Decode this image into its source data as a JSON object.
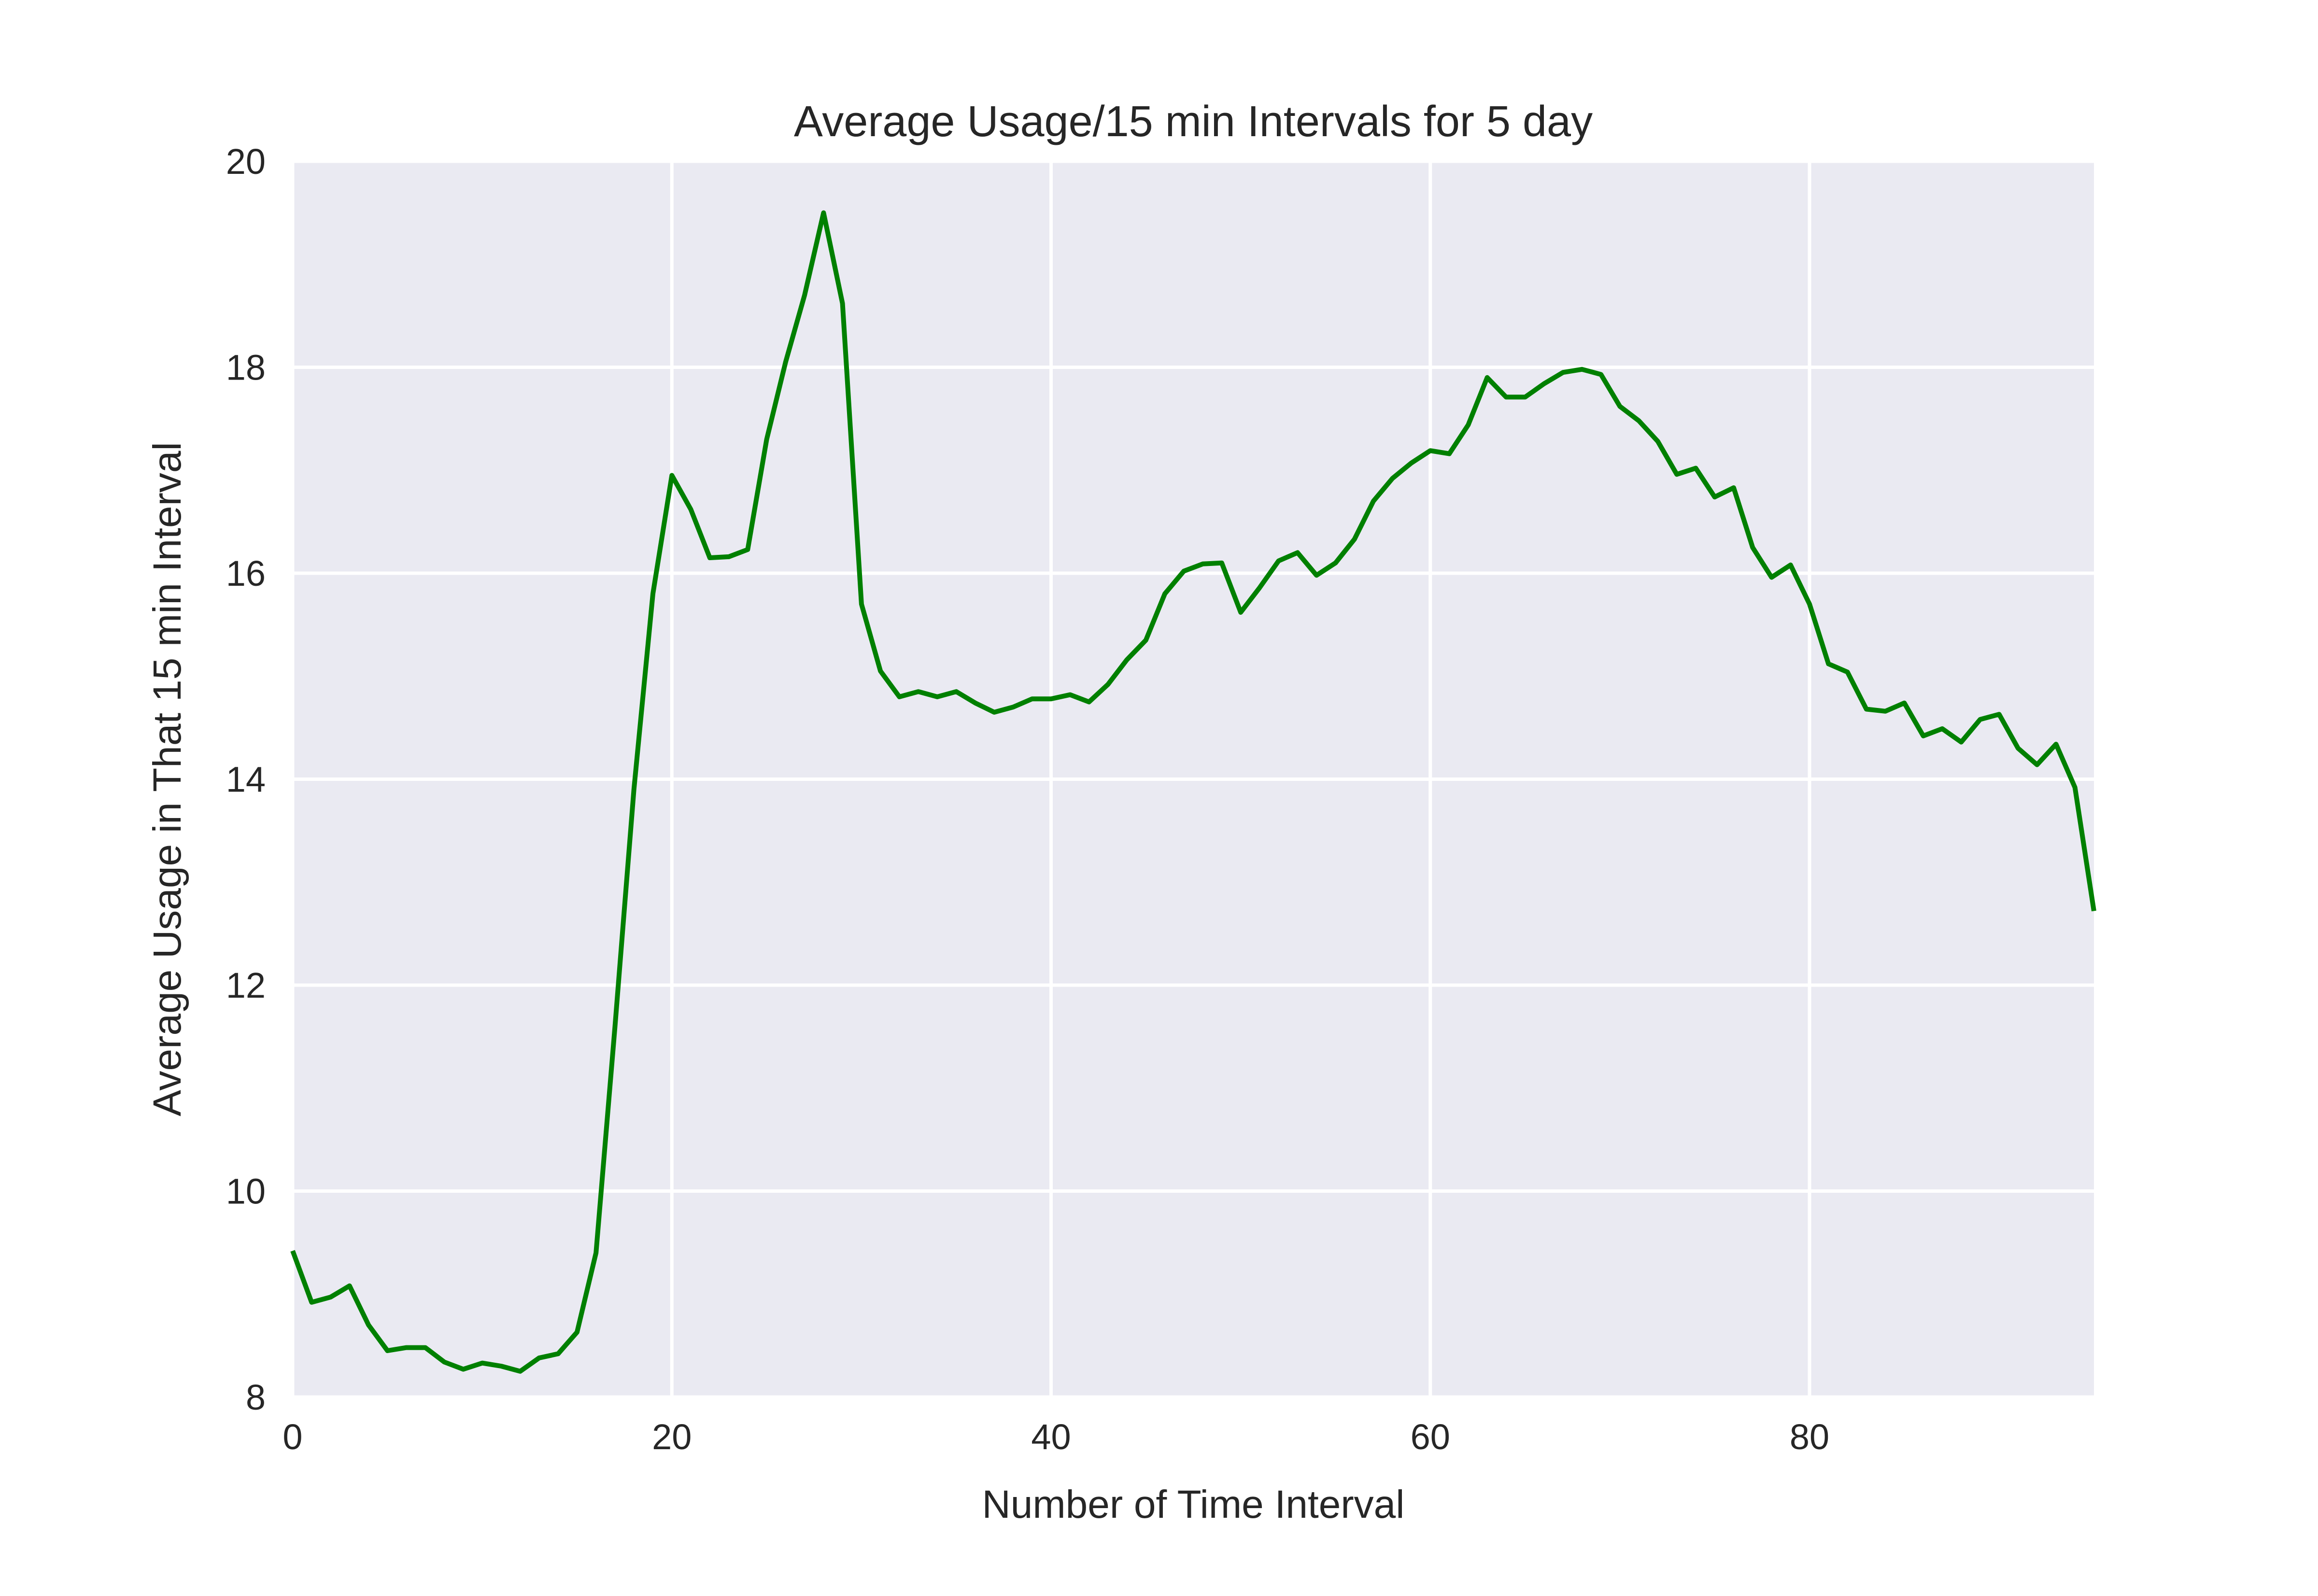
{
  "chart_data": {
    "type": "line",
    "title": "Average Usage/15 min Intervals for 5 day",
    "xlabel": "Number of Time Interval",
    "ylabel": "Average Usage in That 15 min Interval",
    "xlim": [
      0,
      95
    ],
    "ylim": [
      8,
      20
    ],
    "xticks": [
      0,
      20,
      40,
      60,
      80
    ],
    "yticks": [
      8,
      10,
      12,
      14,
      16,
      18,
      20
    ],
    "grid": true,
    "colors": {
      "background": "#eaeaf2",
      "grid": "#ffffff",
      "line": "#008000"
    },
    "series": [
      {
        "x": [
          0,
          1,
          2,
          3,
          4,
          5,
          6,
          7,
          8,
          9,
          10,
          11,
          12,
          13,
          14,
          15,
          16,
          17,
          18,
          19,
          20,
          21,
          22,
          23,
          24,
          25,
          26,
          27,
          28,
          29,
          30,
          31,
          32,
          33,
          34,
          35,
          36,
          37,
          38,
          39,
          40,
          41,
          42,
          43,
          44,
          45,
          46,
          47,
          48,
          49,
          50,
          51,
          52,
          53,
          54,
          55,
          56,
          57,
          58,
          59,
          60,
          61,
          62,
          63,
          64,
          65,
          66,
          67,
          68,
          69,
          70,
          71,
          72,
          73,
          74,
          75,
          76,
          77,
          78,
          79,
          80,
          81,
          82,
          83,
          84,
          85,
          86,
          87,
          88,
          89,
          90,
          91,
          92,
          93,
          94,
          95
        ],
        "y": [
          9.42,
          8.92,
          8.97,
          9.08,
          8.7,
          8.45,
          8.48,
          8.48,
          8.34,
          8.27,
          8.33,
          8.3,
          8.25,
          8.38,
          8.42,
          8.63,
          9.4,
          11.6,
          13.9,
          15.8,
          16.95,
          16.62,
          16.15,
          16.16,
          16.23,
          17.3,
          18.05,
          18.7,
          19.5,
          18.62,
          15.7,
          15.05,
          14.8,
          14.85,
          14.8,
          14.85,
          14.74,
          14.65,
          14.7,
          14.78,
          14.78,
          14.82,
          14.75,
          14.92,
          15.16,
          15.35,
          15.8,
          16.02,
          16.09,
          16.1,
          15.62,
          15.86,
          16.12,
          16.2,
          15.98,
          16.1,
          16.33,
          16.7,
          16.92,
          17.07,
          17.19,
          17.16,
          17.44,
          17.9,
          17.71,
          17.71,
          17.84,
          17.95,
          17.98,
          17.93,
          17.62,
          17.48,
          17.28,
          16.96,
          17.02,
          16.74,
          16.83,
          16.25,
          15.96,
          16.08,
          15.7,
          15.12,
          15.04,
          14.68,
          14.66,
          14.74,
          14.42,
          14.49,
          14.36,
          14.58,
          14.63,
          14.3,
          14.14,
          14.34,
          13.92,
          12.72
        ]
      }
    ]
  }
}
